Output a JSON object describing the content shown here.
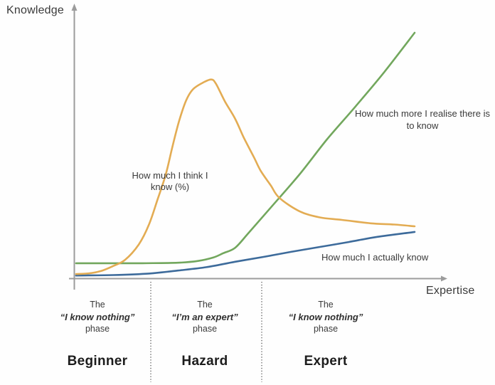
{
  "chart_data": {
    "type": "line",
    "title": "",
    "x_axis": {
      "label": "Expertise",
      "range": [
        0,
        100
      ],
      "ticks": "none"
    },
    "y_axis": {
      "label": "Knowledge",
      "range": [
        0,
        100
      ],
      "ticks": "none"
    },
    "grid": false,
    "legend_position": "inline-annotations",
    "series": [
      {
        "id": "realise",
        "name": "How much more I realise there is to know",
        "color": "#72a75d",
        "points": [
          [
            0,
            6.4
          ],
          [
            9,
            6.4
          ],
          [
            19.5,
            6.4
          ],
          [
            30,
            6.6
          ],
          [
            36,
            7.3
          ],
          [
            40.5,
            8.7
          ],
          [
            43.5,
            10.5
          ],
          [
            47,
            12.7
          ],
          [
            51,
            18.8
          ],
          [
            57.5,
            29
          ],
          [
            66,
            42.5
          ],
          [
            74,
            56.5
          ],
          [
            82.5,
            70
          ],
          [
            91,
            84
          ],
          [
            100,
            100
          ]
        ]
      },
      {
        "id": "actually",
        "name": "How much I actually know",
        "color": "#3d6b9b",
        "points": [
          [
            0,
            1.4
          ],
          [
            11,
            1.6
          ],
          [
            21.5,
            2.2
          ],
          [
            30,
            3.4
          ],
          [
            38.5,
            4.8
          ],
          [
            47,
            7
          ],
          [
            55.5,
            9
          ],
          [
            63.5,
            11
          ],
          [
            72,
            13
          ],
          [
            80.5,
            15
          ],
          [
            89,
            17.1
          ],
          [
            100,
            19.1
          ]
        ]
      },
      {
        "id": "think",
        "name": "How much I think I know (%)",
        "color": "#e3ac53",
        "points": [
          [
            0,
            2
          ],
          [
            4,
            2.3
          ],
          [
            7.5,
            3.3
          ],
          [
            11,
            5.3
          ],
          [
            14.5,
            7.8
          ],
          [
            18.5,
            14
          ],
          [
            21.5,
            22
          ],
          [
            24,
            32
          ],
          [
            26.5,
            42.5
          ],
          [
            28.5,
            54
          ],
          [
            30.5,
            64.5
          ],
          [
            32.5,
            72.5
          ],
          [
            34.5,
            77
          ],
          [
            37.3,
            79.6
          ],
          [
            39.9,
            81
          ],
          [
            41.3,
            79.3
          ],
          [
            44,
            72
          ],
          [
            47,
            65
          ],
          [
            49.5,
            57.5
          ],
          [
            52.5,
            49.5
          ],
          [
            54.5,
            44
          ],
          [
            57.5,
            38
          ],
          [
            60,
            33
          ],
          [
            66,
            27.5
          ],
          [
            72,
            25
          ],
          [
            78.5,
            24
          ],
          [
            87,
            22.6
          ],
          [
            94,
            22.1
          ],
          [
            100,
            21.4
          ]
        ]
      }
    ]
  },
  "phases": [
    {
      "pre": "The",
      "quote": "“I know nothing”",
      "post": "phase",
      "name": "Beginner"
    },
    {
      "pre": "The",
      "quote": "“I’m an expert”",
      "post": "phase",
      "name": "Hazard"
    },
    {
      "pre": "The",
      "quote": "“I know nothing”",
      "post": "phase",
      "name": "Expert"
    }
  ],
  "colors": {
    "axis": "#9c9c9c",
    "divider": "#4a4a4a",
    "text": "#3a3a3a"
  }
}
